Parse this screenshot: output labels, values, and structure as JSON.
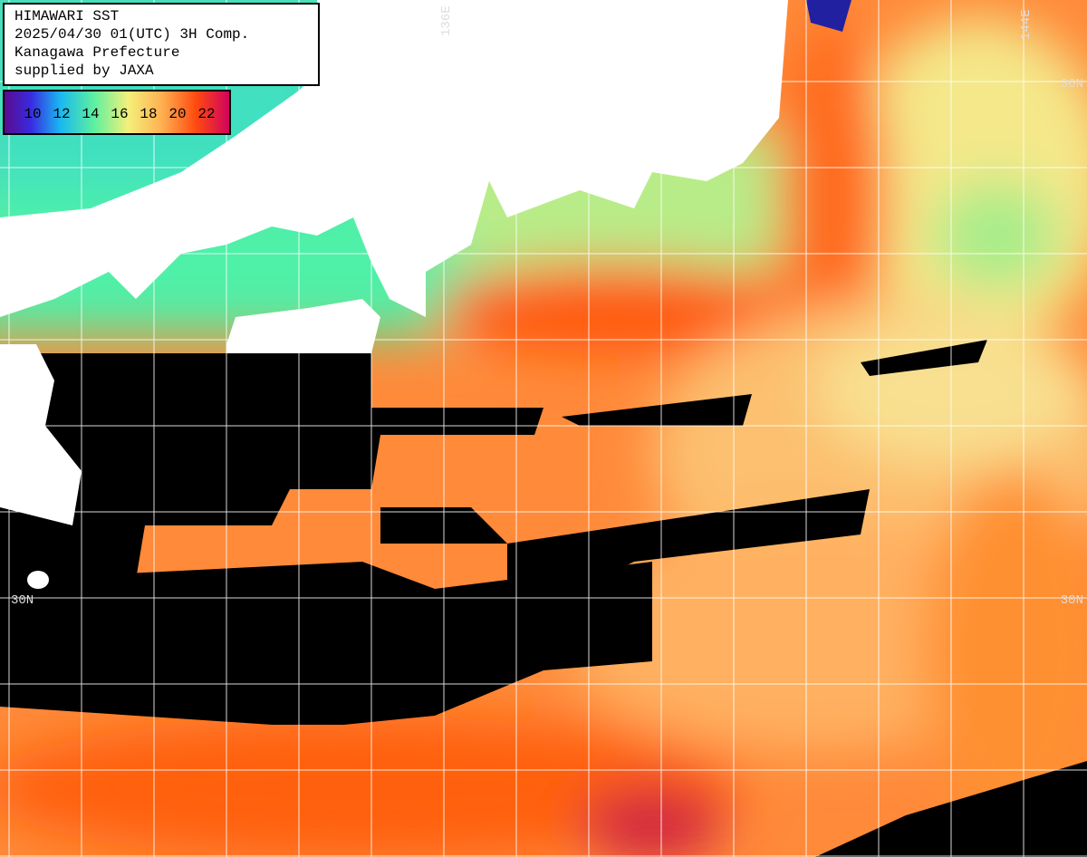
{
  "header": {
    "lines": [
      "HIMAWARI SST",
      "2025/04/30 01(UTC) 3H Comp.",
      "Kanagawa Prefecture",
      "supplied by JAXA"
    ]
  },
  "colorbar": {
    "ticks": [
      10,
      12,
      14,
      16,
      18,
      20,
      22
    ]
  },
  "grid_labels": {
    "lon": [
      "136E",
      "144E"
    ],
    "lat_left": [
      "30N"
    ],
    "lat_right": [
      "36N",
      "30N"
    ]
  }
}
